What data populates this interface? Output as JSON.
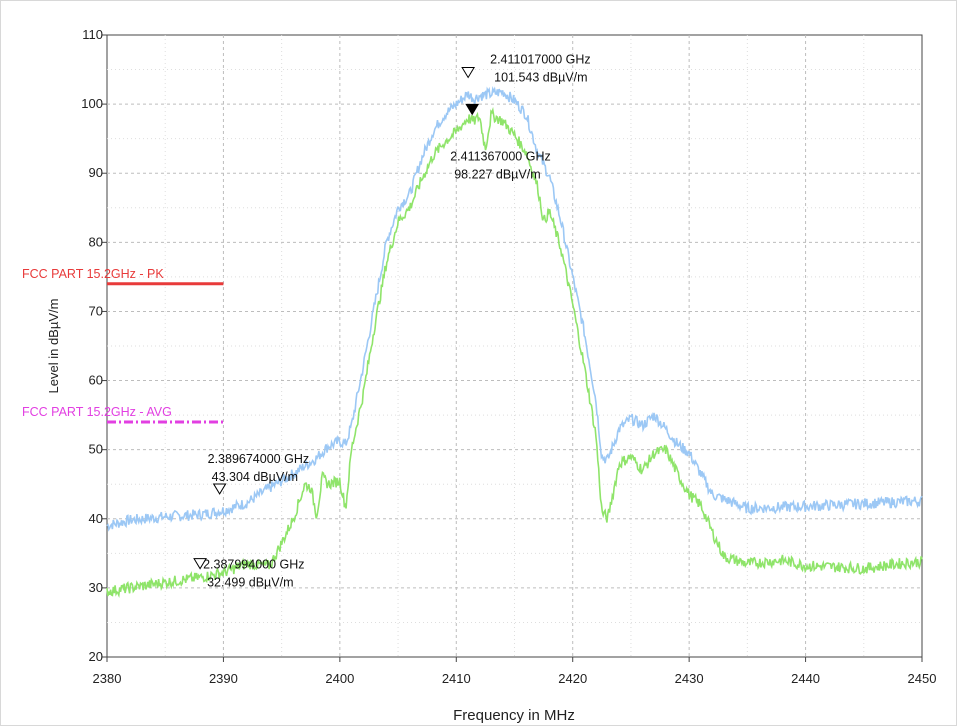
{
  "chart_data": {
    "type": "line",
    "xlabel": "Frequency in MHz",
    "ylabel": "Level in dBµV/m",
    "xlim": [
      2380,
      2450
    ],
    "ylim": [
      20,
      110
    ],
    "x_ticks": [
      2380,
      2390,
      2400,
      2410,
      2420,
      2430,
      2440,
      2450
    ],
    "y_ticks": [
      20,
      30,
      40,
      50,
      60,
      70,
      80,
      90,
      100,
      110
    ],
    "grid": true,
    "series": [
      {
        "color": "#9cc8f5",
        "x": [
          2380,
          2382,
          2385,
          2388,
          2390,
          2392,
          2394,
          2396,
          2398,
          2399,
          2400,
          2400.5,
          2401,
          2402,
          2403,
          2404,
          2405,
          2406,
          2407,
          2408,
          2409,
          2410,
          2411,
          2411.5,
          2412,
          2413,
          2414,
          2415,
          2416,
          2417,
          2418,
          2419,
          2420,
          2421,
          2422,
          2422.5,
          2423,
          2424,
          2425,
          2426,
          2427,
          2428,
          2429,
          2430,
          2431,
          2432,
          2435,
          2440,
          2445,
          2450
        ],
        "values": [
          39,
          39.8,
          40.3,
          40.6,
          41.2,
          42.3,
          44.5,
          46.5,
          48.8,
          50.5,
          51.2,
          50.8,
          53.5,
          62,
          71,
          80,
          85,
          87,
          92,
          96,
          98.5,
          100,
          101.5,
          100.8,
          101.2,
          101.5,
          101.8,
          100.5,
          98.5,
          93,
          89.5,
          83,
          75,
          67,
          57,
          49,
          48.5,
          53,
          54.5,
          53.5,
          55,
          53,
          50.8,
          49.5,
          46.5,
          43.5,
          41.5,
          41.8,
          42.2,
          42.6
        ]
      },
      {
        "color": "#8fe46a",
        "x": [
          2380,
          2382,
          2385,
          2388,
          2390,
          2392,
          2394,
          2395,
          2396,
          2397,
          2397.5,
          2398,
          2398.5,
          2399,
          2400,
          2400.5,
          2401,
          2402,
          2403,
          2404,
          2405,
          2406,
          2407,
          2408,
          2409,
          2410,
          2411,
          2411.5,
          2412,
          2412.5,
          2413,
          2414,
          2415,
          2416,
          2417,
          2417.5,
          2418,
          2419,
          2420,
          2421,
          2422,
          2422.5,
          2423,
          2424,
          2425,
          2426,
          2427,
          2428,
          2429,
          2430,
          2431,
          2432,
          2433,
          2435,
          2438,
          2440,
          2443,
          2445,
          2448,
          2450
        ],
        "values": [
          29.5,
          30,
          30.8,
          31.5,
          32.2,
          33.5,
          33.2,
          36.5,
          40,
          45,
          44.5,
          40.5,
          46,
          45,
          45.5,
          41.5,
          50,
          58,
          68,
          77,
          83,
          85,
          89,
          92.5,
          94.5,
          96,
          98,
          97.5,
          98.2,
          93.5,
          98.5,
          97.5,
          95.5,
          93,
          88,
          83,
          84.5,
          79,
          71,
          62,
          52,
          41,
          40,
          48,
          49,
          47,
          49.5,
          50,
          46.5,
          43.5,
          42,
          38,
          34.5,
          33.5,
          34,
          33.2,
          33,
          32.8,
          33.5,
          33.8
        ]
      }
    ],
    "limit_lines": [
      {
        "label": "FCC PART 15.2GHz - PK",
        "value": 74,
        "x_end": 2390,
        "color": "#e83a3a",
        "style": "solid"
      },
      {
        "label": "FCC PART 15.2GHz - AVG",
        "value": 54,
        "x_end": 2390,
        "color": "#e23fe2",
        "style": "dashdot"
      }
    ],
    "markers": [
      {
        "x": 2411.017,
        "y": 101.543,
        "filled": false,
        "freq_text": "2.411017000 GHz",
        "level_text": "101.543 dBµV/m"
      },
      {
        "x": 2411.367,
        "y": 98.227,
        "filled": true,
        "freq_text": "2.411367000 GHz",
        "level_text": "98.227 dBµV/m"
      },
      {
        "x": 2389.674,
        "y": 43.304,
        "filled": false,
        "freq_text": "2.389674000 GHz",
        "level_text": "43.304 dBµV/m"
      },
      {
        "x": 2387.994,
        "y": 32.499,
        "filled": false,
        "freq_text": "2.387994000 GHz",
        "level_text": "32.499 dBµV/m"
      }
    ]
  }
}
